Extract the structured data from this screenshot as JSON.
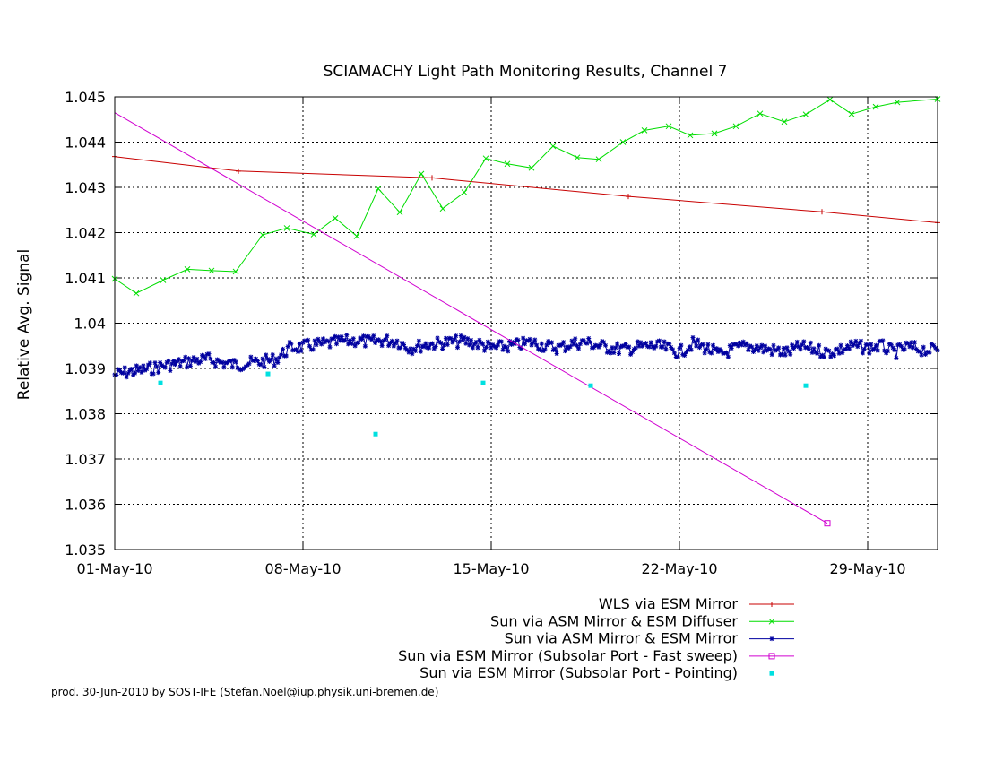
{
  "footer": "prod. 30-Jun-2010 by SOST-IFE (Stefan.Noel@iup.physik.uni-bremen.de)",
  "chart_data": {
    "type": "line",
    "title": "SCIAMACHY Light Path Monitoring Results, Channel 7",
    "xlabel": "",
    "ylabel": "Relative Avg. Signal",
    "xlim": [
      0,
      30.6
    ],
    "ylim": [
      1.035,
      1.045
    ],
    "x_unit": "days since 01-May-10",
    "xticks": [
      {
        "value": 0,
        "label": "01-May-10"
      },
      {
        "value": 7,
        "label": "08-May-10"
      },
      {
        "value": 14,
        "label": "15-May-10"
      },
      {
        "value": 21,
        "label": "22-May-10"
      },
      {
        "value": 28,
        "label": "29-May-10"
      }
    ],
    "yticks": [
      {
        "value": 1.035,
        "label": "1.035"
      },
      {
        "value": 1.036,
        "label": "1.036"
      },
      {
        "value": 1.037,
        "label": "1.037"
      },
      {
        "value": 1.038,
        "label": "1.038"
      },
      {
        "value": 1.039,
        "label": "1.039"
      },
      {
        "value": 1.04,
        "label": "1.04"
      },
      {
        "value": 1.041,
        "label": "1.041"
      },
      {
        "value": 1.042,
        "label": "1.042"
      },
      {
        "value": 1.043,
        "label": "1.043"
      },
      {
        "value": 1.044,
        "label": "1.044"
      },
      {
        "value": 1.045,
        "label": "1.045"
      }
    ],
    "grid": true,
    "legend_position": "bottom-right",
    "series": [
      {
        "name": "WLS via ESM Mirror",
        "color": "#c80000",
        "style": "line-plus",
        "x": [
          0,
          4.6,
          11.8,
          19.1,
          26.3,
          30.6
        ],
        "y": [
          1.04368,
          1.04336,
          1.04321,
          1.0428,
          1.04246,
          1.04222
        ]
      },
      {
        "name": "Sun via ASM Mirror & ESM Diffuser",
        "color": "#00dd00",
        "style": "line-x",
        "x": [
          0,
          0.8,
          1.8,
          2.7,
          3.6,
          4.5,
          5.5,
          6.4,
          7.4,
          8.2,
          9.0,
          9.8,
          10.6,
          11.4,
          12.2,
          13.0,
          13.8,
          14.6,
          15.5,
          16.3,
          17.2,
          18.0,
          18.9,
          19.7,
          20.6,
          21.4,
          22.3,
          23.1,
          24.0,
          24.9,
          25.7,
          26.6,
          27.4,
          28.3,
          29.1,
          30.6
        ],
        "y": [
          1.04098,
          1.04066,
          1.04095,
          1.04119,
          1.04116,
          1.04114,
          1.04195,
          1.0421,
          1.04196,
          1.04232,
          1.04192,
          1.04297,
          1.04245,
          1.0433,
          1.04253,
          1.04289,
          1.04364,
          1.04352,
          1.04343,
          1.04391,
          1.04366,
          1.04362,
          1.044,
          1.04426,
          1.04435,
          1.04415,
          1.04419,
          1.04435,
          1.04463,
          1.04445,
          1.04461,
          1.04494,
          1.04462,
          1.04478,
          1.04488,
          1.04495
        ]
      },
      {
        "name": "Sun via ASM Mirror & ESM Mirror",
        "color": "#0000a0",
        "style": "noisy-line-star",
        "x": [
          0,
          0.5,
          1,
          1.5,
          2,
          2.5,
          3,
          3.5,
          4,
          4.5,
          5,
          5.5,
          6,
          6.5,
          7,
          7.5,
          8,
          8.5,
          9,
          9.5,
          10,
          10.5,
          11,
          11.5,
          12,
          12.5,
          13,
          13.5,
          14,
          14.5,
          15,
          15.5,
          16,
          16.5,
          17,
          17.5,
          18,
          18.5,
          19,
          19.5,
          20,
          20.5,
          21,
          21.5,
          22,
          22.5,
          23,
          23.5,
          24,
          24.5,
          25,
          25.5,
          26,
          26.5,
          27,
          27.5,
          28,
          28.5,
          29,
          29.5,
          30,
          30.6
        ],
        "y": [
          1.03886,
          1.03892,
          1.03896,
          1.03902,
          1.03908,
          1.03912,
          1.03918,
          1.0392,
          1.03912,
          1.03908,
          1.03912,
          1.03915,
          1.0392,
          1.03945,
          1.03948,
          1.03952,
          1.03955,
          1.0396,
          1.03962,
          1.03958,
          1.03962,
          1.0396,
          1.03945,
          1.03952,
          1.03955,
          1.03958,
          1.0396,
          1.03955,
          1.03945,
          1.03948,
          1.03952,
          1.03958,
          1.0395,
          1.03945,
          1.03955,
          1.03958,
          1.0395,
          1.03945,
          1.03942,
          1.03948,
          1.0395,
          1.03945,
          1.03935,
          1.03955,
          1.03945,
          1.0393,
          1.03942,
          1.0395,
          1.03945,
          1.0394,
          1.03935,
          1.03948,
          1.03942,
          1.03935,
          1.03942,
          1.0395,
          1.03945,
          1.0395,
          1.03935,
          1.03948,
          1.03942,
          1.0394
        ]
      },
      {
        "name": "Sun via ESM Mirror (Subsolar Port - Fast sweep)",
        "color": "#d000d0",
        "style": "line-square-end",
        "x": [
          0,
          26.5
        ],
        "y": [
          1.04465,
          1.03558
        ]
      },
      {
        "name": "Sun via ESM Mirror (Subsolar Port - Pointing)",
        "color": "#00e0e0",
        "style": "points",
        "x": [
          1.7,
          5.7,
          9.7,
          13.7,
          17.7,
          25.7
        ],
        "y": [
          1.03868,
          1.03888,
          1.03755,
          1.03868,
          1.03862,
          1.03862
        ]
      }
    ]
  }
}
